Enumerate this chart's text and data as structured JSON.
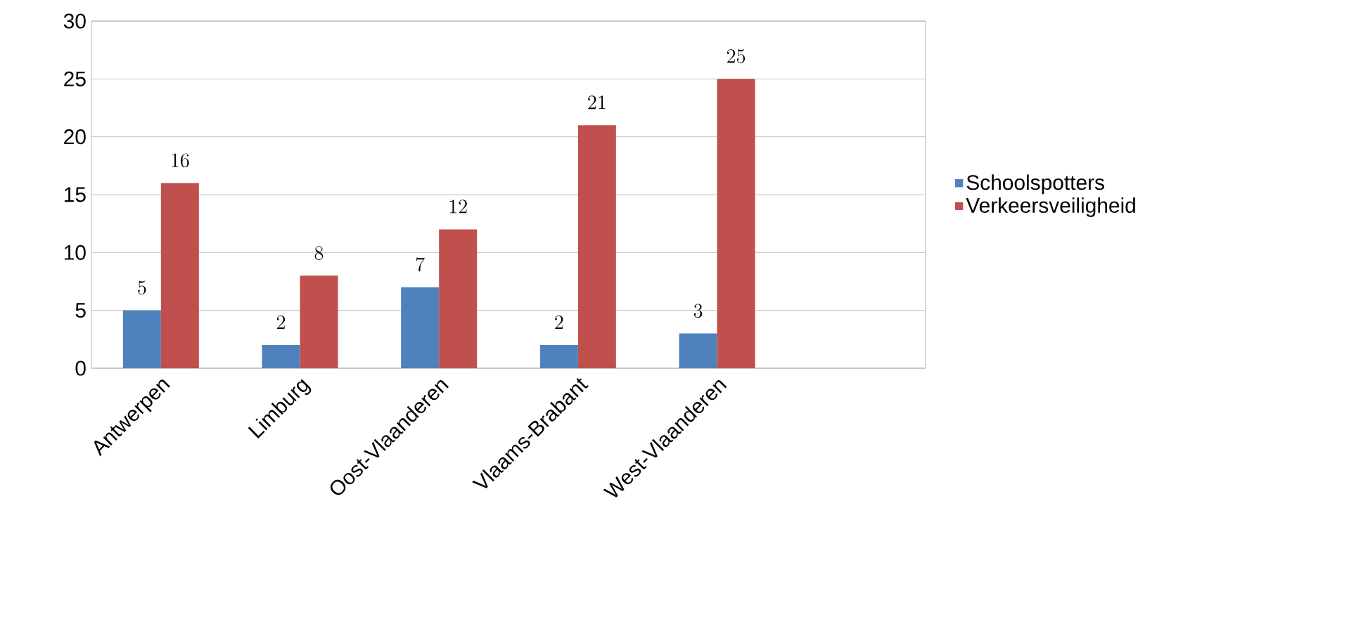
{
  "chart_data": {
    "type": "bar",
    "categories": [
      "Antwerpen",
      "Limburg",
      "Oost-Vlaanderen",
      "Vlaams-Brabant",
      "West-Vlaanderen",
      null
    ],
    "series": [
      {
        "name": "Schoolspotters",
        "color": "#4f81bd",
        "values": [
          5,
          2,
          7,
          2,
          3,
          null
        ]
      },
      {
        "name": "Verkeersveiligheid",
        "color": "#c0504d",
        "values": [
          16,
          8,
          12,
          21,
          25,
          null
        ]
      }
    ],
    "ylim": [
      0,
      30
    ],
    "yticks": [
      0,
      5,
      10,
      15,
      20,
      25,
      30
    ],
    "grid": "y",
    "legend": "right",
    "data_labels": true
  }
}
